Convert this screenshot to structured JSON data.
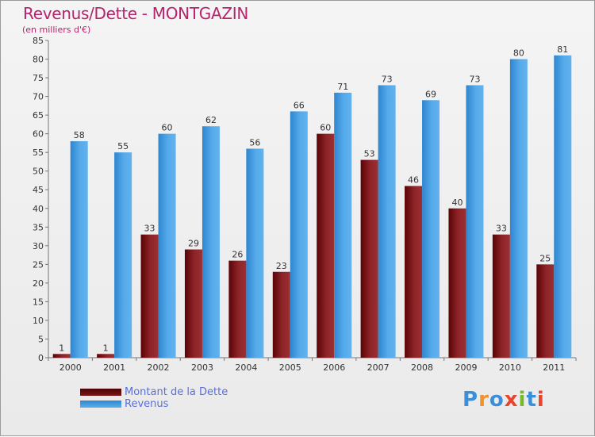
{
  "header": {
    "title": "Revenus/Dette - MONTGAZIN",
    "subtitle": "(en milliers d'€)"
  },
  "legend": {
    "items": [
      {
        "label": "Montant de la Dette",
        "color": "#6b0a0a"
      },
      {
        "label": "Revenus",
        "color": "#3a96de"
      }
    ]
  },
  "logo": {
    "text": "Proxiti",
    "colors": [
      "#3b8fd8",
      "#f0932b",
      "#3b8fd8",
      "#e8452c",
      "#79b829",
      "#3b8fd8",
      "#e8452c"
    ]
  },
  "chart_data": {
    "type": "bar",
    "title": "Revenus/Dette - MONTGAZIN",
    "subtitle": "(en milliers d'€)",
    "categories": [
      "2000",
      "2001",
      "2002",
      "2003",
      "2004",
      "2005",
      "2006",
      "2007",
      "2008",
      "2009",
      "2010",
      "2011"
    ],
    "series": [
      {
        "name": "Montant de la Dette",
        "color": "#8a1e22",
        "values": [
          1,
          1,
          33,
          29,
          26,
          23,
          60,
          53,
          46,
          40,
          33,
          25
        ]
      },
      {
        "name": "Revenus",
        "color": "#4aa3e6",
        "values": [
          58,
          55,
          60,
          62,
          56,
          66,
          71,
          73,
          69,
          73,
          80,
          81
        ]
      }
    ],
    "ylim": [
      0,
      85
    ],
    "ytick_step": 5,
    "grid": false,
    "legend_position": "bottom-left"
  }
}
